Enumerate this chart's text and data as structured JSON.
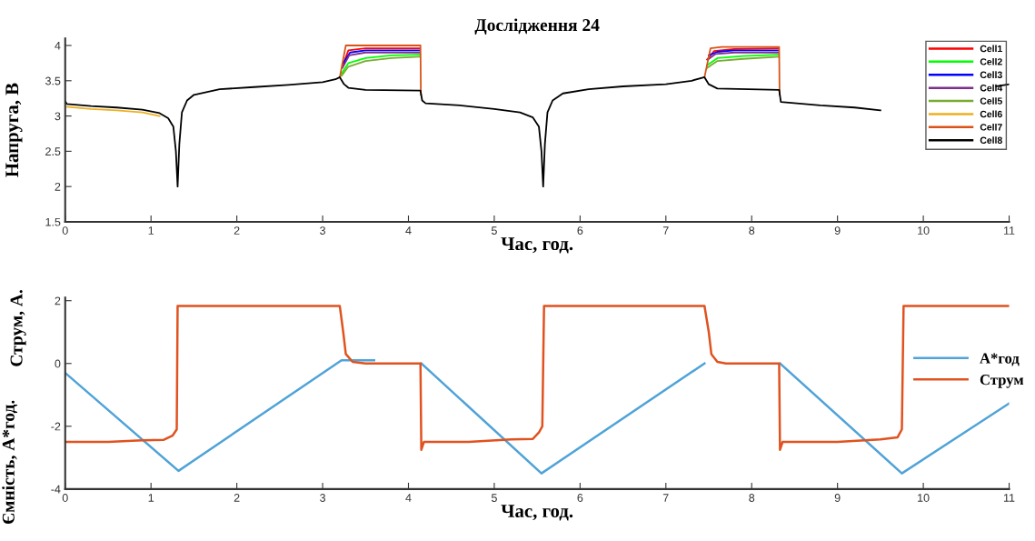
{
  "chart_data": [
    {
      "type": "line",
      "title": "Дослідження 24",
      "xlabel": "Час, год.",
      "ylabel": "Напруга, В",
      "xlim": [
        0,
        11
      ],
      "xticks": [
        0,
        1,
        2,
        3,
        4,
        5,
        6,
        7,
        8,
        9,
        10,
        11
      ],
      "ylim": [
        1.5,
        4.1
      ],
      "yticks": [
        1.5,
        2,
        2.5,
        3,
        3.5,
        4
      ],
      "grid": false,
      "legend": "top right",
      "marker": "none",
      "line_style": "solid",
      "series": [
        {
          "name": "Cell1",
          "color": "#ff0000",
          "x": [
            3.23,
            3.3,
            3.5,
            4.13,
            4.135,
            7.48,
            7.56,
            7.8,
            8.31
          ],
          "values": [
            3.7,
            3.93,
            3.96,
            3.96,
            null,
            3.8,
            3.92,
            3.95,
            3.96
          ]
        },
        {
          "name": "Cell2",
          "color": "#00ff00",
          "x": [
            3.22,
            3.3,
            3.5,
            3.8,
            4.13,
            4.135,
            7.48,
            7.6,
            7.9,
            8.31
          ],
          "values": [
            3.6,
            3.75,
            3.82,
            3.86,
            3.87,
            null,
            3.72,
            3.82,
            3.85,
            3.87
          ]
        },
        {
          "name": "Cell3",
          "color": "#0000ff",
          "x": [
            3.24,
            3.32,
            3.5,
            4.13,
            4.135,
            7.5,
            7.6,
            7.8,
            8.31
          ],
          "values": [
            3.75,
            3.9,
            3.93,
            3.93,
            null,
            3.86,
            3.91,
            3.93,
            3.93
          ]
        },
        {
          "name": "Cell4",
          "color": "#7e2f8e",
          "x": [
            3.23,
            3.31,
            3.5,
            4.13,
            4.135,
            7.49,
            7.58,
            7.8,
            8.31
          ],
          "values": [
            3.68,
            3.86,
            3.9,
            3.9,
            null,
            3.8,
            3.88,
            3.9,
            3.9
          ]
        },
        {
          "name": "Cell5",
          "color": "#77ac30",
          "x": [
            3.22,
            3.3,
            3.5,
            3.8,
            4.13,
            4.135,
            7.48,
            7.6,
            7.9,
            8.31
          ],
          "values": [
            3.57,
            3.7,
            3.78,
            3.82,
            3.84,
            null,
            3.68,
            3.78,
            3.81,
            3.84
          ]
        },
        {
          "name": "Cell6",
          "color": "#edb120",
          "x": [
            0.02,
            0.3,
            0.6,
            0.9,
            1.1
          ],
          "values": [
            3.13,
            3.1,
            3.08,
            3.05,
            3.0
          ]
        },
        {
          "name": "Cell7",
          "color": "#d95319",
          "x": [
            3.2,
            3.27,
            3.4,
            4.14,
            4.145,
            4.15,
            7.45,
            7.52,
            7.65,
            8.32,
            8.325
          ],
          "values": [
            3.55,
            4.0,
            4.0,
            4.0,
            3.3,
            null,
            3.55,
            3.96,
            3.98,
            3.98,
            3.3
          ]
        },
        {
          "name": "Cell8",
          "color": "#000000",
          "x": [
            0,
            0.02,
            0.3,
            0.6,
            0.9,
            1.1,
            1.2,
            1.26,
            1.29,
            1.31,
            1.33,
            1.36,
            1.42,
            1.5,
            1.8,
            2.2,
            2.6,
            3.0,
            3.15,
            3.2,
            3.25,
            3.3,
            3.5,
            4.14,
            4.16,
            4.2,
            4.6,
            5.0,
            5.3,
            5.45,
            5.52,
            5.55,
            5.57,
            5.59,
            5.62,
            5.68,
            5.8,
            6.1,
            6.5,
            7.0,
            7.3,
            7.45,
            7.5,
            7.6,
            8.32,
            8.34,
            8.8,
            9.2,
            9.5,
            9.7,
            10.85,
            11
          ],
          "values": [
            3.21,
            3.17,
            3.14,
            3.12,
            3.09,
            3.04,
            2.97,
            2.85,
            2.5,
            2.0,
            2.6,
            3.05,
            3.22,
            3.3,
            3.38,
            3.41,
            3.44,
            3.48,
            3.52,
            3.55,
            3.45,
            3.4,
            3.37,
            3.36,
            3.22,
            3.18,
            3.15,
            3.1,
            3.05,
            2.98,
            2.85,
            2.5,
            2.0,
            2.6,
            3.05,
            3.22,
            3.32,
            3.38,
            3.42,
            3.45,
            3.5,
            3.55,
            3.45,
            3.39,
            3.37,
            3.2,
            3.15,
            3.12,
            3.08,
            null,
            3.42,
            3.45
          ]
        }
      ]
    },
    {
      "type": "line",
      "xlabel": "Час, год.",
      "ylabel": "Ємність, А*год.",
      "annotations": [
        "Струм, А."
      ],
      "xlim": [
        0,
        11
      ],
      "xticks": [
        0,
        1,
        2,
        3,
        4,
        5,
        6,
        7,
        8,
        9,
        10,
        11
      ],
      "ylim": [
        -4,
        2.1
      ],
      "yticks": [
        -4,
        -2,
        0,
        2
      ],
      "grid": false,
      "legend": "right",
      "marker": "none",
      "line_style": "solid",
      "series": [
        {
          "name": "А*год",
          "color": "#4fa3d8",
          "x": [
            0,
            1.32,
            3.22,
            3.6,
            3.61,
            4.15,
            5.55,
            7.45,
            7.46,
            8.33,
            9.75,
            11
          ],
          "values": [
            -0.3,
            -3.42,
            0.1,
            0.1,
            null,
            0,
            -3.5,
            0,
            null,
            0,
            -3.5,
            -1.27
          ]
        },
        {
          "name": "Струм",
          "color": "#e0521f",
          "x": [
            0.01,
            0.5,
            0.9,
            1.15,
            1.25,
            1.3,
            1.31,
            3.2,
            3.24,
            3.27,
            3.35,
            3.5,
            4.14,
            4.15,
            4.18,
            4.7,
            5.2,
            5.45,
            5.52,
            5.56,
            5.58,
            7.45,
            7.5,
            7.53,
            7.6,
            7.7,
            8.32,
            8.33,
            8.36,
            9.0,
            9.5,
            9.7,
            9.75,
            9.77,
            11
          ],
          "values": [
            -2.5,
            -2.5,
            -2.45,
            -2.43,
            -2.3,
            -2.1,
            1.83,
            1.83,
            1.0,
            0.3,
            0.05,
            0,
            0,
            -2.75,
            -2.5,
            -2.5,
            -2.42,
            -2.4,
            -2.2,
            -2.0,
            1.83,
            1.83,
            1.0,
            0.3,
            0.05,
            0,
            0,
            -2.75,
            -2.5,
            -2.5,
            -2.42,
            -2.35,
            -2.1,
            1.83,
            1.83
          ]
        }
      ]
    }
  ]
}
